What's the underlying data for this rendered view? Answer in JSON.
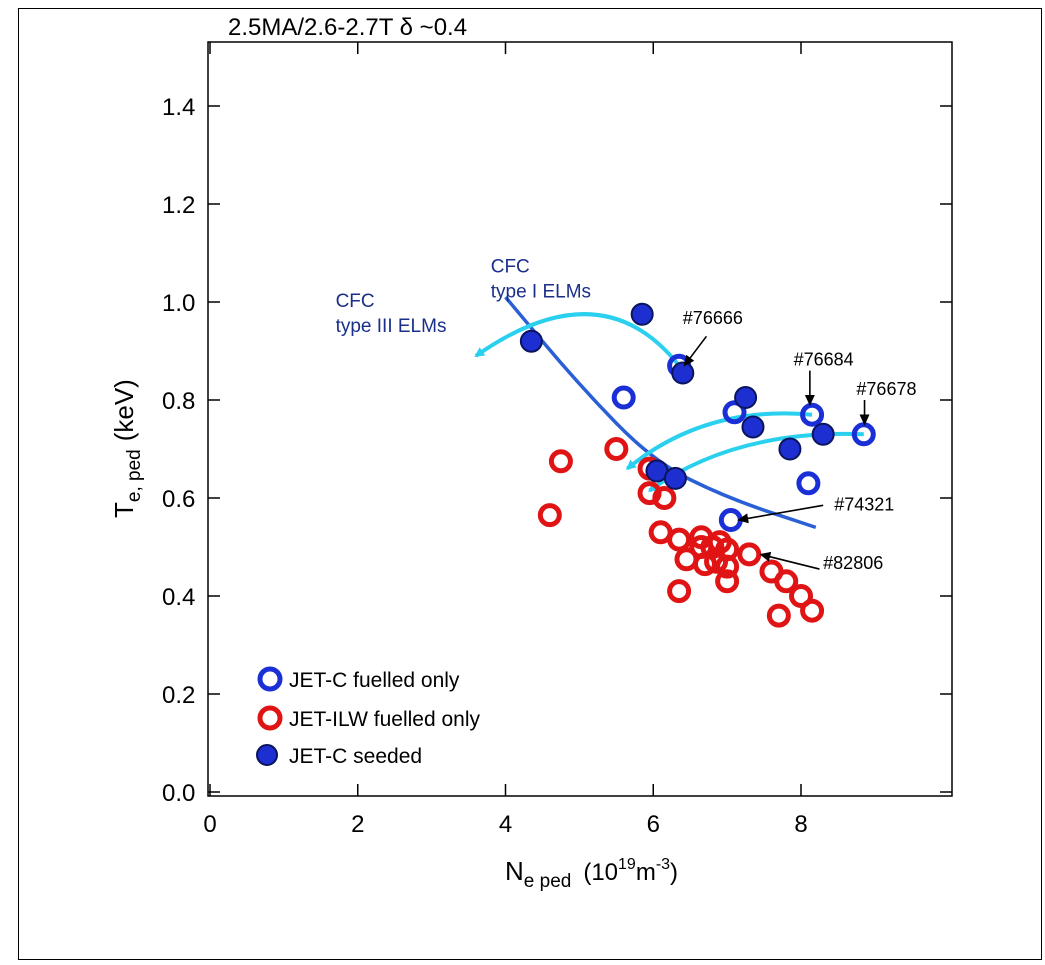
{
  "chart_data": {
    "type": "scatter",
    "title": "2.5MA/2.6-2.7T  δ ~0.4",
    "xlabel": {
      "main": "N",
      "sub": "e ped",
      "units_pre": "(10",
      "units_sup1": "19",
      "units_mid": "m",
      "units_sup2": "-3",
      "units_post": ")"
    },
    "ylabel": {
      "main": "T",
      "sub": "e, ped",
      "units": "(keV)"
    },
    "xlim": [
      0,
      10
    ],
    "ylim": [
      0,
      1.5
    ],
    "xticks": [
      {
        "v": 0,
        "label": "0"
      },
      {
        "v": 2,
        "label": "2"
      },
      {
        "v": 4,
        "label": "4"
      },
      {
        "v": 6,
        "label": "6"
      },
      {
        "v": 8,
        "label": "8"
      }
    ],
    "yticks": [
      {
        "v": 0.0,
        "label": "0.0"
      },
      {
        "v": 0.2,
        "label": "0.2"
      },
      {
        "v": 0.4,
        "label": "0.4"
      },
      {
        "v": 0.6,
        "label": "0.6"
      },
      {
        "v": 0.8,
        "label": "0.8"
      },
      {
        "v": 1.0,
        "label": "1.0"
      },
      {
        "v": 1.2,
        "label": "1.2"
      },
      {
        "v": 1.4,
        "label": "1.4"
      }
    ],
    "series": [
      {
        "name": "JET-C fuelled only",
        "style": "open",
        "color": "#1a2fd6",
        "points": [
          [
            5.6,
            0.805
          ],
          [
            6.35,
            0.87
          ],
          [
            7.1,
            0.775
          ],
          [
            8.15,
            0.77
          ],
          [
            8.85,
            0.73
          ],
          [
            8.1,
            0.63
          ],
          [
            7.05,
            0.555
          ]
        ]
      },
      {
        "name": "JET-ILW fuelled only",
        "style": "open",
        "color": "#e01414",
        "points": [
          [
            4.75,
            0.675
          ],
          [
            4.6,
            0.565
          ],
          [
            5.5,
            0.7
          ],
          [
            5.95,
            0.66
          ],
          [
            5.95,
            0.61
          ],
          [
            6.15,
            0.6
          ],
          [
            6.1,
            0.53
          ],
          [
            6.35,
            0.515
          ],
          [
            6.45,
            0.475
          ],
          [
            6.35,
            0.41
          ],
          [
            6.65,
            0.5
          ],
          [
            6.7,
            0.465
          ],
          [
            6.65,
            0.52
          ],
          [
            6.8,
            0.5
          ],
          [
            6.85,
            0.47
          ],
          [
            6.9,
            0.51
          ],
          [
            7.0,
            0.495
          ],
          [
            7.0,
            0.46
          ],
          [
            7.0,
            0.43
          ],
          [
            7.3,
            0.485
          ],
          [
            7.6,
            0.45
          ],
          [
            7.8,
            0.43
          ],
          [
            7.7,
            0.36
          ],
          [
            8.0,
            0.4
          ],
          [
            8.15,
            0.37
          ]
        ]
      },
      {
        "name": "JET-C seeded",
        "style": "filled",
        "color": "#1e2fd2",
        "edge": "#0a155e",
        "points": [
          [
            4.35,
            0.92
          ],
          [
            5.85,
            0.975
          ],
          [
            6.4,
            0.855
          ],
          [
            7.25,
            0.805
          ],
          [
            7.35,
            0.745
          ],
          [
            7.85,
            0.7
          ],
          [
            8.3,
            0.73
          ],
          [
            6.05,
            0.655
          ],
          [
            6.3,
            0.64
          ]
        ]
      }
    ],
    "fit_curve": {
      "color": "#2a5fd6",
      "points": [
        [
          4.0,
          1.01
        ],
        [
          5.0,
          0.83
        ],
        [
          6.0,
          0.675
        ],
        [
          7.0,
          0.6
        ],
        [
          8.2,
          0.54
        ]
      ]
    },
    "trajectory_arrows": [
      {
        "color": "#2ad0ee",
        "from": [
          6.35,
          0.87
        ],
        "ctrl": [
          5.3,
          1.07
        ],
        "to": [
          3.6,
          0.89
        ]
      },
      {
        "color": "#2ad0ee",
        "from": [
          8.15,
          0.77
        ],
        "ctrl": [
          6.7,
          0.79
        ],
        "to": [
          5.65,
          0.66
        ]
      },
      {
        "color": "#2ad0ee",
        "from": [
          8.85,
          0.73
        ],
        "ctrl": [
          7.1,
          0.74
        ],
        "to": [
          5.95,
          0.615
        ]
      }
    ],
    "annotations": [
      {
        "text": "#76666",
        "text_at": [
          6.4,
          0.955
        ],
        "tip": [
          6.42,
          0.87
        ],
        "tail": [
          6.72,
          0.93
        ]
      },
      {
        "text": "#76684",
        "text_at": [
          7.9,
          0.87
        ],
        "tip": [
          8.12,
          0.79
        ],
        "tail": [
          8.12,
          0.86
        ]
      },
      {
        "text": "#76678",
        "text_at": [
          8.75,
          0.81
        ],
        "tip": [
          8.86,
          0.75
        ],
        "tail": [
          8.86,
          0.8
        ]
      },
      {
        "text": "#74321",
        "text_at": [
          8.45,
          0.575
        ],
        "tip": [
          7.15,
          0.555
        ],
        "tail": [
          8.3,
          0.585
        ]
      },
      {
        "text": "#82806",
        "text_at": [
          8.3,
          0.455
        ],
        "tip": [
          7.45,
          0.485
        ],
        "tail": [
          8.25,
          0.455
        ]
      }
    ],
    "regime_labels": [
      {
        "lines": [
          "CFC",
          "type I ELMs"
        ],
        "at": [
          3.8,
          1.06
        ]
      },
      {
        "lines": [
          "CFC",
          "type III ELMs"
        ],
        "at": [
          1.7,
          0.99
        ]
      }
    ],
    "legend": {
      "position": "bottom-left"
    }
  }
}
